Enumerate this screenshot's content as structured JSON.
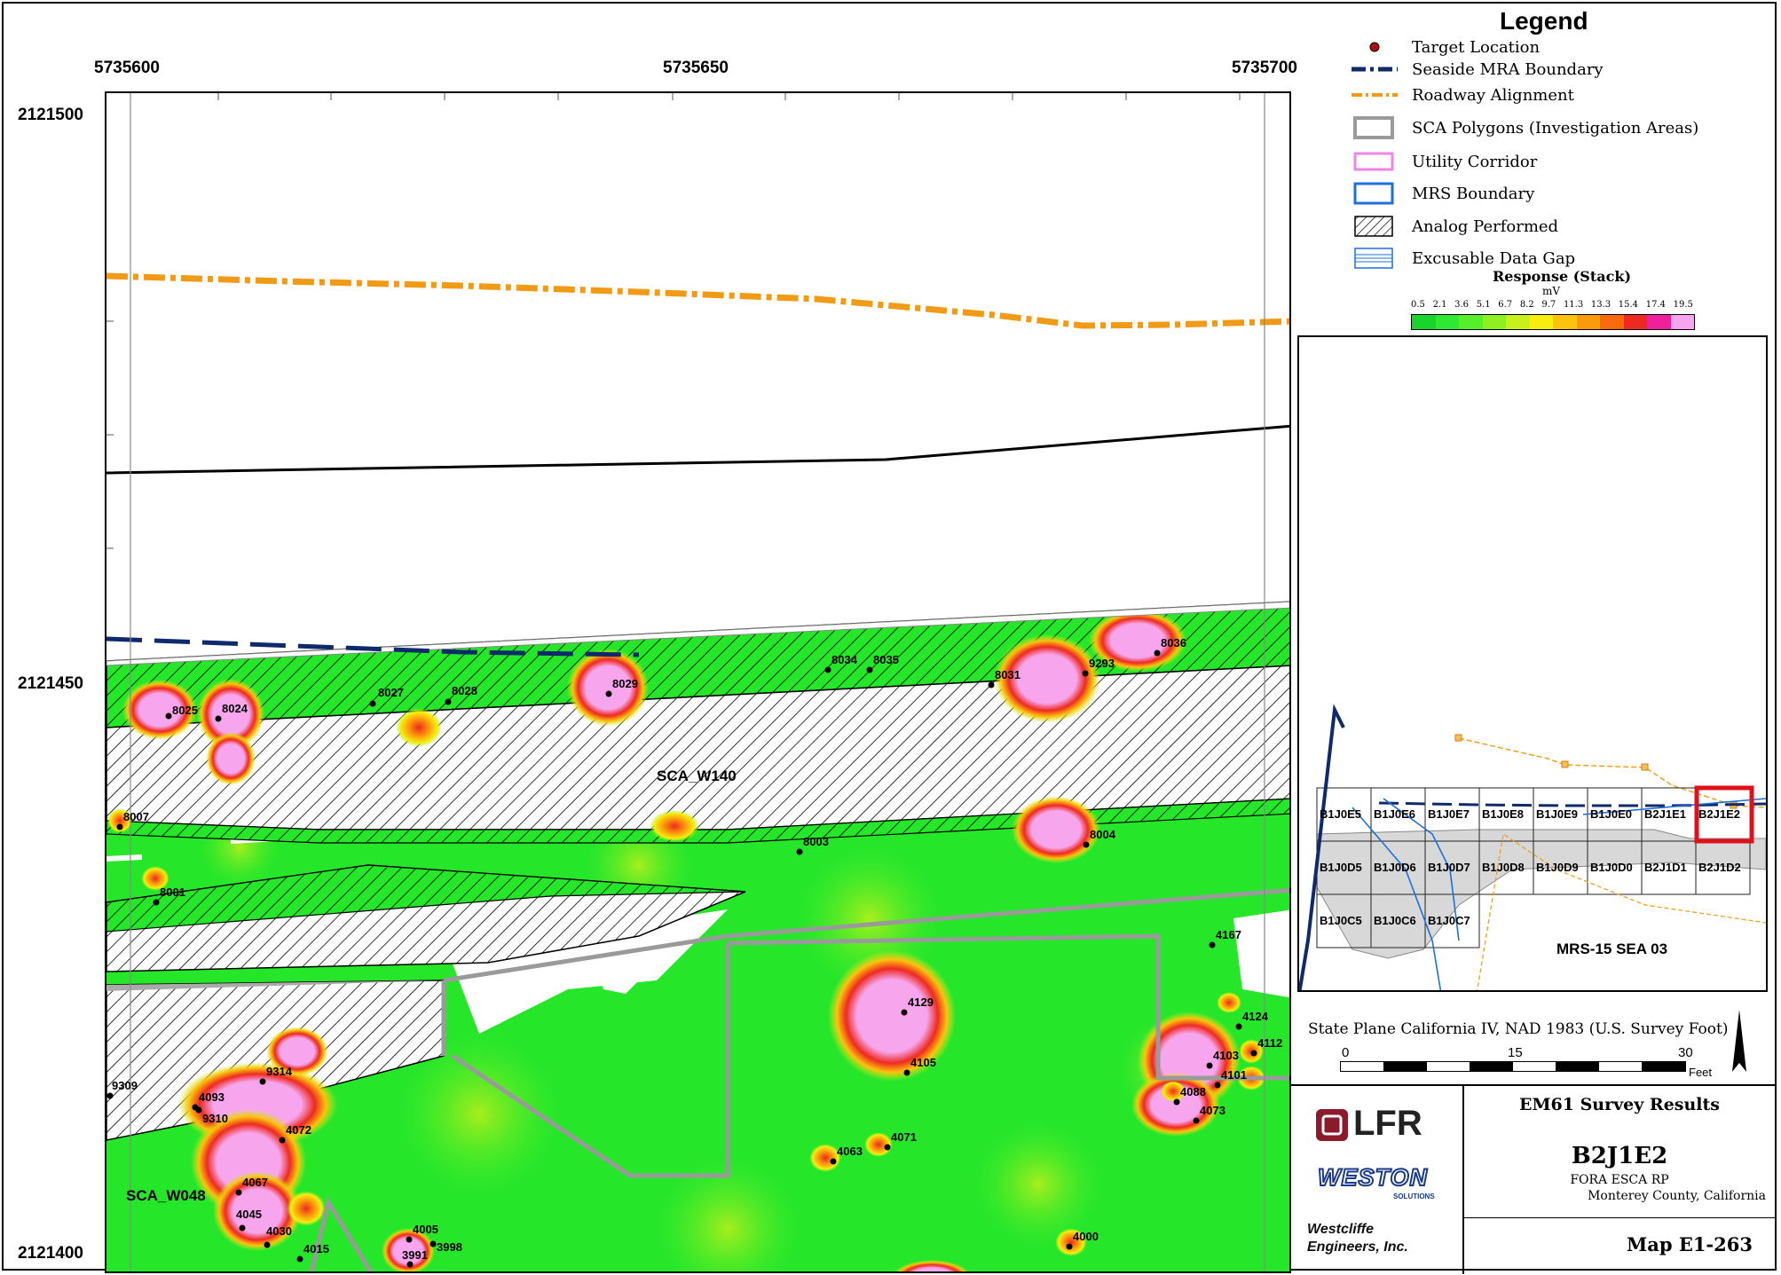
{
  "map": {
    "x_ticks": [
      "5735600",
      "5735650",
      "5735700"
    ],
    "y_ticks": [
      "2121500",
      "2121450",
      "2121400"
    ],
    "sca_labels": [
      "SCA_W140",
      "SCA_W048"
    ],
    "targets": [
      "8025",
      "8024",
      "8027",
      "8028",
      "8029",
      "8034",
      "8035",
      "8031",
      "9293",
      "8036",
      "8007",
      "8003",
      "8004",
      "8001",
      "4167",
      "4129",
      "4105",
      "4124",
      "4112",
      "4103",
      "4101",
      "4088",
      "4073",
      "9309",
      "4093",
      "9310",
      "9314",
      "4072",
      "4067",
      "4045",
      "4030",
      "4015",
      "4063",
      "4071",
      "4005",
      "3998",
      "3991",
      "4000"
    ]
  },
  "legend": {
    "title": "Legend",
    "items": [
      {
        "label": "Target Location",
        "icon": "target-dot"
      },
      {
        "label": "Seaside MRA Boundary",
        "icon": "dash-dot-navy"
      },
      {
        "label": "Roadway Alignment",
        "icon": "dash-dot-orange"
      },
      {
        "label": "SCA Polygons (Investigation Areas)",
        "icon": "gray-box"
      },
      {
        "label": "Utility Corridor",
        "icon": "pink-box"
      },
      {
        "label": "MRS Boundary",
        "icon": "blue-box"
      },
      {
        "label": "Analog Performed",
        "icon": "hatch-box"
      },
      {
        "label": "Excusable Data Gap",
        "icon": "blue-lines-box"
      }
    ],
    "response_title": "Response (Stack)",
    "response_unit": "mV",
    "response_values": [
      "0.5",
      "2.1",
      "3.6",
      "5.1",
      "6.7",
      "8.2",
      "9.7",
      "11.3",
      "13.3",
      "15.4",
      "17.4",
      "19.5"
    ],
    "response_colors": [
      "#19d42a",
      "#2ee831",
      "#55f02a",
      "#8ef020",
      "#c8f01a",
      "#f7ee10",
      "#fcc20c",
      "#fb9a0a",
      "#f86a0a",
      "#ee2a20",
      "#f0209a",
      "#f7a6ee"
    ]
  },
  "inset": {
    "grid": [
      [
        "B1J0E5",
        "B1J0E6",
        "B1J0E7",
        "B1J0E8",
        "B1J0E9",
        "B1J0E0",
        "B2J1E1",
        "B2J1E2"
      ],
      [
        "B1J0D5",
        "B1J0D6",
        "B1J0D7",
        "B1J0D8",
        "B1J0D9",
        "B1J0D0",
        "B2J1D1",
        "B2J1D2"
      ],
      [
        "B1J0C5",
        "B1J0C6",
        "B1J0C7"
      ]
    ],
    "mrs_label": "MRS-15 SEA 03",
    "highlight": "B2J1E2"
  },
  "projection": "State Plane California IV, NAD 1983 (U.S. Survey Foot)",
  "scale": {
    "ticks": [
      "0",
      "15",
      "30"
    ],
    "unit": "Feet"
  },
  "titleblock": {
    "company1": "LFR",
    "company2": "WESTON",
    "company2_sub": "SOLUTIONS",
    "company3": "Westcliffe Engineers, Inc.",
    "survey": "EM61 Survey Results",
    "grid_id": "B2J1E2",
    "project": "FORA ESCA RP",
    "county": "Monterey County, California",
    "map_no": "Map E1-263"
  }
}
